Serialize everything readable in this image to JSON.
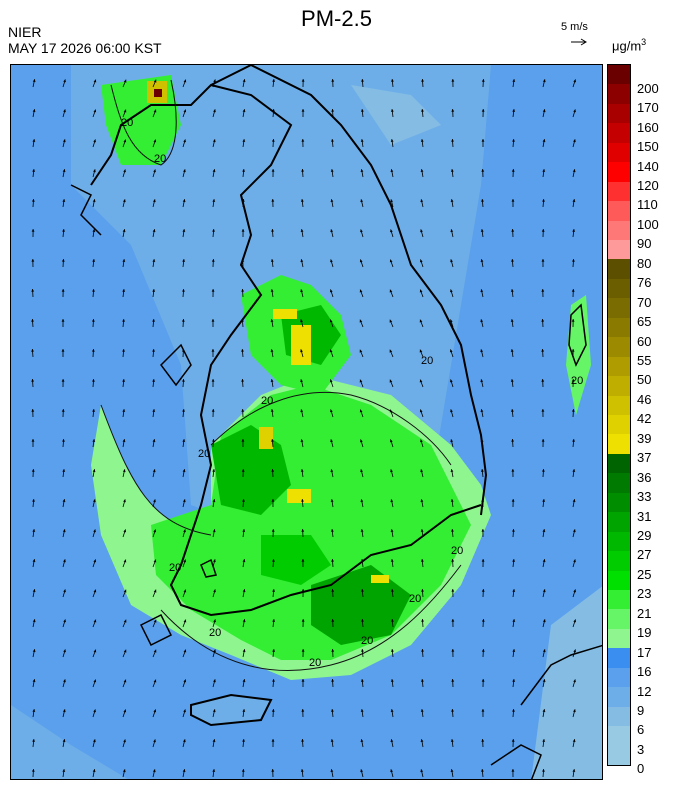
{
  "header": {
    "title": "PM-2.5",
    "organization": "NIER",
    "datetime": "MAY 17 2026 06:00 KST",
    "wind_reference": "5 m/s",
    "unit_base": "μg/m",
    "unit_exp": "3"
  },
  "colorbar": {
    "levels": [
      {
        "label": "200",
        "color": "#6b0000"
      },
      {
        "label": "170",
        "color": "#8c0000"
      },
      {
        "label": "160",
        "color": "#a80000"
      },
      {
        "label": "150",
        "color": "#c40000"
      },
      {
        "label": "140",
        "color": "#e00000"
      },
      {
        "label": "120",
        "color": "#ff0000"
      },
      {
        "label": "110",
        "color": "#ff3030"
      },
      {
        "label": "100",
        "color": "#ff5a5a"
      },
      {
        "label": "90",
        "color": "#ff7878"
      },
      {
        "label": "80",
        "color": "#ff9a9a"
      },
      {
        "label": "76",
        "color": "#5c5000"
      },
      {
        "label": "70",
        "color": "#6b5e00"
      },
      {
        "label": "65",
        "color": "#7a6c00"
      },
      {
        "label": "60",
        "color": "#8a7a00"
      },
      {
        "label": "55",
        "color": "#9c8a00"
      },
      {
        "label": "50",
        "color": "#ae9c00"
      },
      {
        "label": "46",
        "color": "#bfae00"
      },
      {
        "label": "42",
        "color": "#cfc000"
      },
      {
        "label": "39",
        "color": "#dfd000"
      },
      {
        "label": "37",
        "color": "#eee000"
      },
      {
        "label": "36",
        "color": "#006400"
      },
      {
        "label": "33",
        "color": "#007a00"
      },
      {
        "label": "31",
        "color": "#008e00"
      },
      {
        "label": "29",
        "color": "#00a400"
      },
      {
        "label": "27",
        "color": "#00b800"
      },
      {
        "label": "25",
        "color": "#00cc00"
      },
      {
        "label": "23",
        "color": "#00e000"
      },
      {
        "label": "21",
        "color": "#33ee33"
      },
      {
        "label": "19",
        "color": "#66f566"
      },
      {
        "label": "17",
        "color": "#8ff58f"
      },
      {
        "label": "16",
        "color": "#3a8ef0"
      },
      {
        "label": "12",
        "color": "#5aa0ec"
      },
      {
        "label": "9",
        "color": "#6eaee8"
      },
      {
        "label": "6",
        "color": "#84bce4"
      },
      {
        "label": "3",
        "color": "#98cae4"
      },
      {
        "label": "0",
        "color": "#98cae4"
      }
    ]
  },
  "contour_labels": [
    "20",
    "20",
    "20",
    "20",
    "20",
    "20",
    "20",
    "20",
    "20",
    "20",
    "20",
    "20"
  ]
}
